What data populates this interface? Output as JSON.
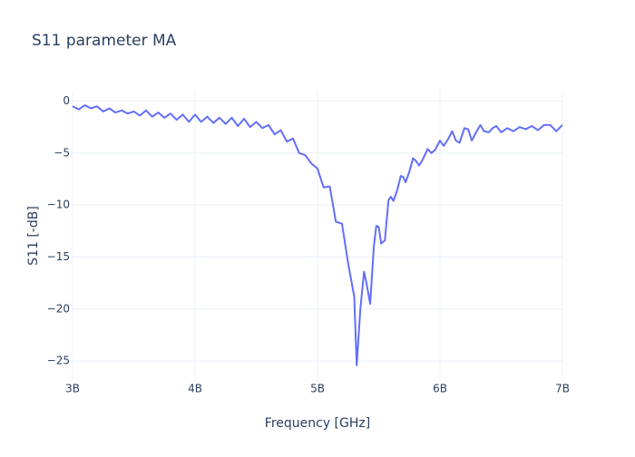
{
  "chart_data": {
    "type": "line",
    "title": "S11 parameter MA",
    "x_label": "Frequency [GHz]",
    "y_label": "S11 [-dB]",
    "x": [
      3000000000.0,
      3050000000.0,
      3100000000.0,
      3150000000.0,
      3200000000.0,
      3250000000.0,
      3300000000.0,
      3350000000.0,
      3400000000.0,
      3450000000.0,
      3500000000.0,
      3550000000.0,
      3600000000.0,
      3650000000.0,
      3700000000.0,
      3750000000.0,
      3800000000.0,
      3850000000.0,
      3900000000.0,
      3950000000.0,
      4000000000.0,
      4050000000.0,
      4100000000.0,
      4150000000.0,
      4200000000.0,
      4250000000.0,
      4300000000.0,
      4350000000.0,
      4400000000.0,
      4450000000.0,
      4500000000.0,
      4550000000.0,
      4600000000.0,
      4650000000.0,
      4700000000.0,
      4750000000.0,
      4800000000.0,
      4850000000.0,
      4900000000.0,
      4950000000.0,
      5000000000.0,
      5050000000.0,
      5100000000.0,
      5150000000.0,
      5200000000.0,
      5250000000.0,
      5300000000.0,
      5320000000.0,
      5350000000.0,
      5380000000.0,
      5400000000.0,
      5430000000.0,
      5460000000.0,
      5480000000.0,
      5500000000.0,
      5520000000.0,
      5550000000.0,
      5580000000.0,
      5600000000.0,
      5620000000.0,
      5650000000.0,
      5680000000.0,
      5700000000.0,
      5720000000.0,
      5750000000.0,
      5780000000.0,
      5800000000.0,
      5830000000.0,
      5860000000.0,
      5900000000.0,
      5930000000.0,
      5960000000.0,
      6000000000.0,
      6030000000.0,
      6060000000.0,
      6100000000.0,
      6130000000.0,
      6160000000.0,
      6200000000.0,
      6230000000.0,
      6260000000.0,
      6300000000.0,
      6330000000.0,
      6360000000.0,
      6400000000.0,
      6430000000.0,
      6460000000.0,
      6500000000.0,
      6550000000.0,
      6600000000.0,
      6650000000.0,
      6700000000.0,
      6750000000.0,
      6800000000.0,
      6850000000.0,
      6900000000.0,
      6950000000.0,
      7000000000.0
    ],
    "series": [
      {
        "name": "S11",
        "color": "#636efa",
        "values": [
          -0.5,
          -0.8,
          -0.4,
          -0.7,
          -0.5,
          -1.0,
          -0.7,
          -1.1,
          -0.9,
          -1.2,
          -1.0,
          -1.4,
          -0.9,
          -1.5,
          -1.1,
          -1.6,
          -1.2,
          -1.8,
          -1.3,
          -2.0,
          -1.3,
          -2.0,
          -1.5,
          -2.1,
          -1.6,
          -2.2,
          -1.6,
          -2.4,
          -1.7,
          -2.5,
          -2.0,
          -2.6,
          -2.3,
          -3.2,
          -2.8,
          -3.9,
          -3.6,
          -5.0,
          -5.2,
          -6.0,
          -6.5,
          -8.3,
          -8.2,
          -11.6,
          -11.8,
          -15.6,
          -18.8,
          -25.4,
          -20.0,
          -16.4,
          -17.5,
          -19.5,
          -14.0,
          -12.0,
          -12.1,
          -13.7,
          -13.4,
          -9.5,
          -9.2,
          -9.6,
          -8.6,
          -7.2,
          -7.3,
          -7.8,
          -6.8,
          -5.5,
          -5.7,
          -6.2,
          -5.6,
          -4.6,
          -5.0,
          -4.7,
          -3.8,
          -4.3,
          -3.8,
          -2.9,
          -3.8,
          -4.0,
          -2.6,
          -2.7,
          -3.8,
          -2.9,
          -2.3,
          -2.9,
          -3.0,
          -2.6,
          -2.4,
          -3.0,
          -2.6,
          -2.9,
          -2.5,
          -2.7,
          -2.4,
          -2.8,
          -2.3,
          -2.3,
          -2.9,
          -2.3
        ]
      }
    ],
    "xlim": [
      3000000000.0,
      7000000000.0
    ],
    "xticks": [
      {
        "value": 3000000000.0,
        "label": "3B"
      },
      {
        "value": 4000000000.0,
        "label": "4B"
      },
      {
        "value": 5000000000.0,
        "label": "5B"
      },
      {
        "value": 6000000000.0,
        "label": "6B"
      },
      {
        "value": 7000000000.0,
        "label": "7B"
      }
    ],
    "ylim": [
      -26.9,
      1
    ],
    "yticks": [
      0,
      {
        "value": -5,
        "label": "−5"
      },
      {
        "value": -10,
        "label": "−10"
      },
      {
        "value": -15,
        "label": "−15"
      },
      {
        "value": -20,
        "label": "−20"
      },
      {
        "value": -25,
        "label": "−25"
      }
    ],
    "grid": true
  }
}
